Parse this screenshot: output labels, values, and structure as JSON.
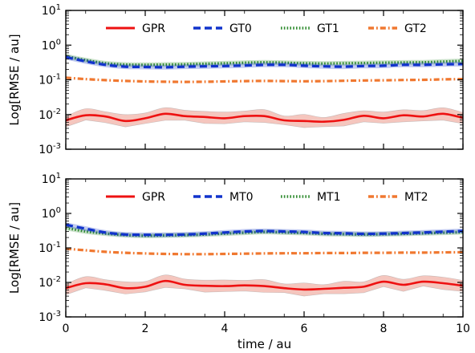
{
  "chart_data": [
    {
      "type": "line",
      "xlabel": "",
      "ylabel": "Log[RMSE / au]",
      "xlim": [
        0,
        10
      ],
      "ylim_log10": [
        -3,
        1
      ],
      "yscale": "log",
      "xticks": [
        "0",
        "2",
        "4",
        "6",
        "8",
        "10"
      ],
      "xticks_shown": false,
      "yticks": [
        {
          "base": "10",
          "exp": "1"
        },
        {
          "base": "10",
          "exp": "0"
        },
        {
          "base": "10",
          "exp": "-1"
        },
        {
          "base": "10",
          "exp": "-2"
        },
        {
          "base": "10",
          "exp": "-3"
        }
      ],
      "legend_position": "top",
      "x": [
        0,
        0.5,
        1,
        1.5,
        2,
        2.5,
        3,
        3.5,
        4,
        4.5,
        5,
        5.5,
        6,
        6.5,
        7,
        7.5,
        8,
        8.5,
        9,
        9.5,
        10
      ],
      "series": [
        {
          "name": "GPR",
          "color": "#ee1111",
          "style": "solid",
          "band_color": "#f2b3a8",
          "values": [
            0.0068,
            0.0095,
            0.0088,
            0.0065,
            0.0078,
            0.0105,
            0.009,
            0.0085,
            0.0078,
            0.009,
            0.009,
            0.0068,
            0.0065,
            0.0062,
            0.007,
            0.0092,
            0.0078,
            0.0095,
            0.0088,
            0.0105,
            0.008
          ]
        },
        {
          "name": "GT0",
          "color": "#1133cc",
          "style": "dashed",
          "values": [
            0.45,
            0.34,
            0.27,
            0.24,
            0.235,
            0.23,
            0.24,
            0.245,
            0.25,
            0.26,
            0.27,
            0.27,
            0.255,
            0.245,
            0.24,
            0.25,
            0.255,
            0.27,
            0.27,
            0.28,
            0.285
          ]
        },
        {
          "name": "GT1",
          "color": "#2e8b2e",
          "style": "dotted",
          "values": [
            0.48,
            0.37,
            0.3,
            0.275,
            0.27,
            0.275,
            0.28,
            0.29,
            0.3,
            0.31,
            0.32,
            0.31,
            0.3,
            0.295,
            0.3,
            0.305,
            0.31,
            0.315,
            0.32,
            0.335,
            0.35
          ]
        },
        {
          "name": "GT2",
          "color": "#f07830",
          "style": "dashdot",
          "values": [
            0.115,
            0.105,
            0.098,
            0.093,
            0.09,
            0.088,
            0.087,
            0.088,
            0.09,
            0.092,
            0.093,
            0.092,
            0.091,
            0.092,
            0.094,
            0.096,
            0.097,
            0.099,
            0.1,
            0.103,
            0.105
          ]
        }
      ]
    },
    {
      "type": "line",
      "xlabel": "time / au",
      "ylabel": "Log[RMSE / au]",
      "xlim": [
        0,
        10
      ],
      "ylim_log10": [
        -3,
        1
      ],
      "yscale": "log",
      "xticks": [
        "0",
        "2",
        "4",
        "6",
        "8",
        "10"
      ],
      "xticks_shown": true,
      "yticks": [
        {
          "base": "10",
          "exp": "1"
        },
        {
          "base": "10",
          "exp": "0"
        },
        {
          "base": "10",
          "exp": "-1"
        },
        {
          "base": "10",
          "exp": "-2"
        },
        {
          "base": "10",
          "exp": "-3"
        }
      ],
      "legend_position": "top",
      "x": [
        0,
        0.5,
        1,
        1.5,
        2,
        2.5,
        3,
        3.5,
        4,
        4.5,
        5,
        5.5,
        6,
        6.5,
        7,
        7.5,
        8,
        8.5,
        9,
        9.5,
        10
      ],
      "series": [
        {
          "name": "GPR",
          "color": "#ee1111",
          "style": "solid",
          "band_color": "#f2b3a8",
          "values": [
            0.0068,
            0.0095,
            0.0088,
            0.0068,
            0.0075,
            0.011,
            0.0085,
            0.008,
            0.0078,
            0.0082,
            0.0078,
            0.0068,
            0.0062,
            0.0065,
            0.007,
            0.0075,
            0.0105,
            0.0085,
            0.0105,
            0.0095,
            0.008
          ]
        },
        {
          "name": "MT0",
          "color": "#1133cc",
          "style": "dashed",
          "values": [
            0.47,
            0.36,
            0.28,
            0.245,
            0.24,
            0.24,
            0.245,
            0.26,
            0.28,
            0.3,
            0.31,
            0.3,
            0.29,
            0.27,
            0.265,
            0.255,
            0.26,
            0.27,
            0.28,
            0.295,
            0.31
          ]
        },
        {
          "name": "MT1",
          "color": "#2e8b2e",
          "style": "dotted",
          "values": [
            0.38,
            0.3,
            0.26,
            0.235,
            0.225,
            0.23,
            0.235,
            0.245,
            0.26,
            0.275,
            0.29,
            0.28,
            0.27,
            0.255,
            0.25,
            0.245,
            0.25,
            0.255,
            0.265,
            0.275,
            0.285
          ]
        },
        {
          "name": "MT2",
          "color": "#f07830",
          "style": "dashdot",
          "values": [
            0.095,
            0.085,
            0.077,
            0.072,
            0.069,
            0.067,
            0.066,
            0.066,
            0.067,
            0.068,
            0.069,
            0.07,
            0.07,
            0.071,
            0.071,
            0.072,
            0.072,
            0.073,
            0.073,
            0.074,
            0.075
          ]
        }
      ]
    }
  ]
}
